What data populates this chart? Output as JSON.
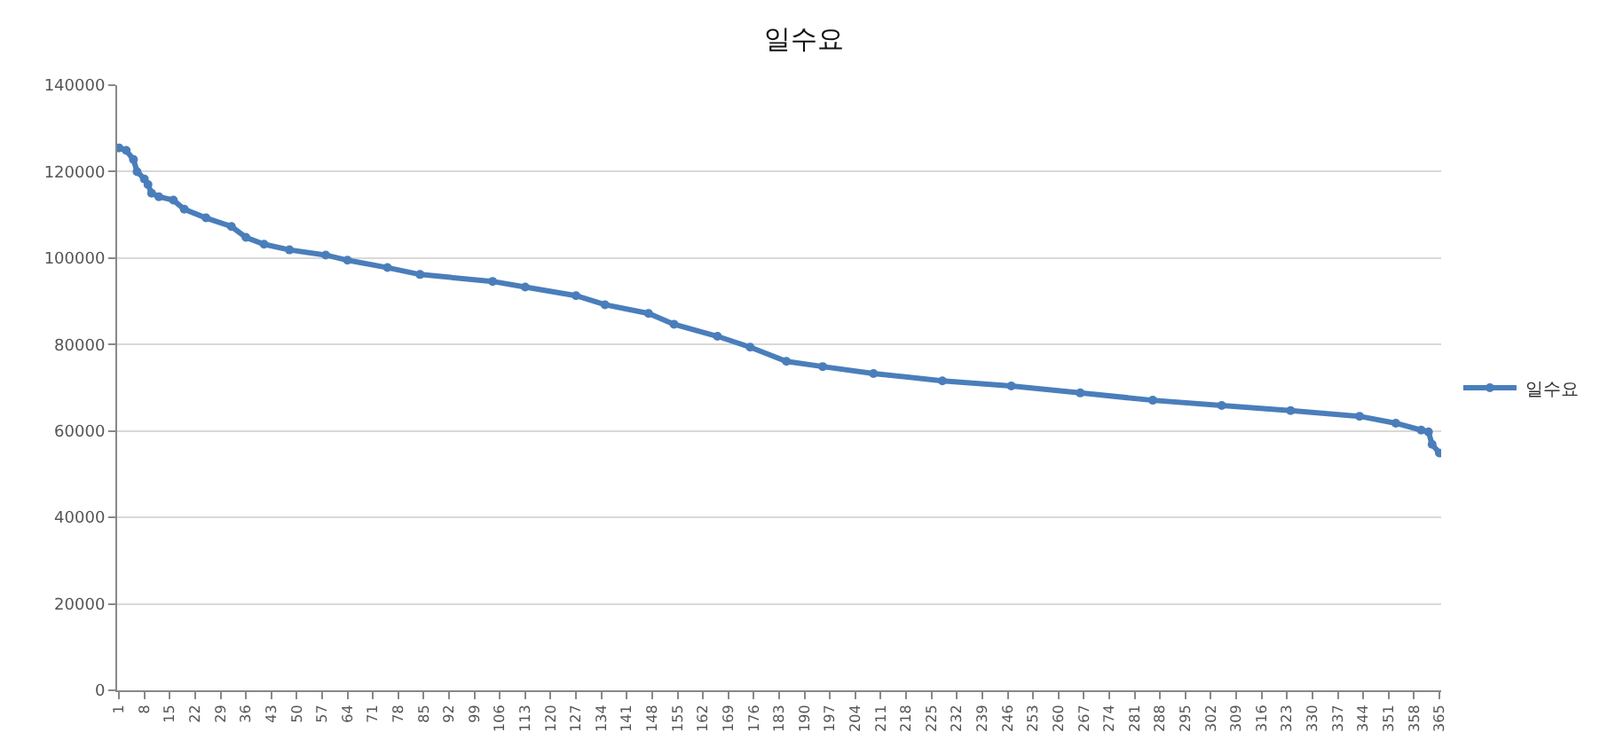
{
  "chart_data": {
    "type": "line",
    "title": "일수요",
    "x": [
      1,
      3,
      5,
      6,
      8,
      9,
      10,
      12,
      16,
      19,
      25,
      32,
      36,
      41,
      48,
      58,
      64,
      75,
      84,
      104,
      113,
      127,
      135,
      147,
      154,
      166,
      175,
      185,
      195,
      209,
      228,
      247,
      266,
      286,
      305,
      324,
      343,
      353,
      360,
      362,
      363,
      365
    ],
    "series": [
      {
        "name": "일수요",
        "color": "#4a7ebb",
        "values": [
          125500,
          124900,
          122800,
          120000,
          118300,
          117000,
          115000,
          114200,
          113400,
          111300,
          109300,
          107300,
          104800,
          103200,
          101900,
          100700,
          99500,
          97800,
          96200,
          94600,
          93300,
          91300,
          89200,
          87200,
          84700,
          81900,
          79400,
          76100,
          74900,
          73300,
          71600,
          70400,
          68800,
          67100,
          65900,
          64700,
          63400,
          61800,
          60200,
          59800,
          56900,
          54900
        ]
      }
    ],
    "xlim": [
      0.5,
      365.5
    ],
    "xticks": [
      1,
      8,
      15,
      22,
      29,
      36,
      43,
      50,
      57,
      64,
      71,
      78,
      85,
      92,
      99,
      106,
      113,
      120,
      127,
      134,
      141,
      148,
      155,
      162,
      169,
      176,
      183,
      190,
      197,
      204,
      211,
      218,
      225,
      232,
      239,
      246,
      253,
      260,
      267,
      274,
      281,
      288,
      295,
      302,
      309,
      316,
      323,
      330,
      337,
      344,
      351,
      358,
      365
    ],
    "ylim": [
      0,
      140000
    ],
    "yticks": [
      0,
      20000,
      40000,
      60000,
      80000,
      100000,
      120000,
      140000
    ],
    "grid": "y",
    "legend": "right",
    "marker": "circle",
    "line_style": "solid"
  }
}
